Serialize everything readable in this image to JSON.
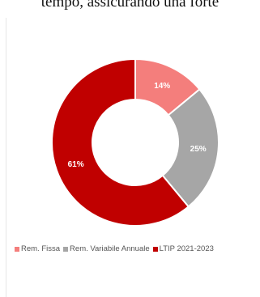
{
  "page": {
    "top_text": "tempo, assicurando una forte"
  },
  "chart_data": {
    "type": "pie",
    "categories": [
      "Rem. Fissa",
      "Rem. Variabile Annuale",
      "LTIP 2021-2023"
    ],
    "values": [
      14,
      25,
      61
    ],
    "labels": [
      "14%",
      "25%",
      "61%"
    ],
    "colors": [
      "#f47e7c",
      "#a6a6a6",
      "#c00000"
    ],
    "legend_position": "bottom",
    "donut": true
  }
}
